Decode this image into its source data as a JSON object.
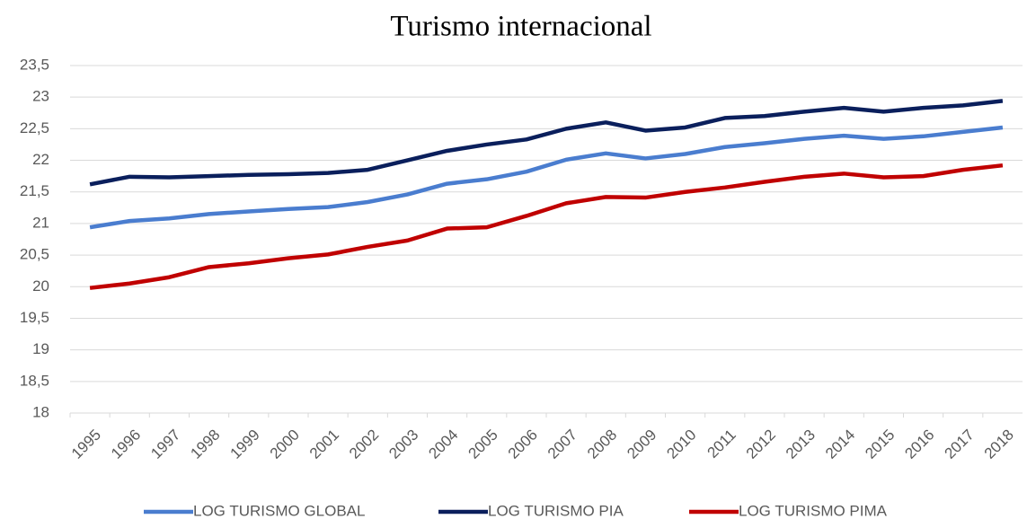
{
  "chart_data": {
    "type": "line",
    "title": "Turismo internacional",
    "categories": [
      "1995",
      "1996",
      "1997",
      "1998",
      "1999",
      "2000",
      "2001",
      "2002",
      "2003",
      "2004",
      "2005",
      "2006",
      "2007",
      "2008",
      "2009",
      "2010",
      "2011",
      "2012",
      "2013",
      "2014",
      "2015",
      "2016",
      "2017",
      "2018"
    ],
    "series": [
      {
        "name": "LOG TURISMO GLOBAL",
        "color": "#4a7dcf",
        "values": [
          20.94,
          21.04,
          21.08,
          21.15,
          21.19,
          21.23,
          21.26,
          21.34,
          21.46,
          21.63,
          21.7,
          21.82,
          22.01,
          22.11,
          22.03,
          22.1,
          22.21,
          22.27,
          22.34,
          22.39,
          22.34,
          22.38,
          22.45,
          22.52
        ]
      },
      {
        "name": "LOG TURISMO PIA",
        "color": "#0a1f5c",
        "values": [
          21.62,
          21.74,
          21.73,
          21.75,
          21.77,
          21.78,
          21.8,
          21.85,
          22.0,
          22.15,
          22.25,
          22.33,
          22.5,
          22.6,
          22.47,
          22.52,
          22.67,
          22.7,
          22.77,
          22.83,
          22.77,
          22.83,
          22.87,
          22.94
        ]
      },
      {
        "name": "LOG TURISMO PIMA",
        "color": "#c00000",
        "values": [
          19.98,
          20.05,
          20.15,
          20.31,
          20.37,
          20.45,
          20.51,
          20.63,
          20.73,
          20.92,
          20.94,
          21.12,
          21.32,
          21.42,
          21.41,
          21.5,
          21.57,
          21.66,
          21.74,
          21.79,
          21.73,
          21.75,
          21.85,
          21.92
        ]
      }
    ],
    "ylim": [
      18,
      23.5
    ],
    "yticks": [
      18,
      {
        "value": 18.5,
        "label": "18,5"
      },
      19,
      {
        "value": 19.5,
        "label": "19,5"
      },
      20,
      {
        "value": 20.5,
        "label": "20,5"
      },
      21,
      {
        "value": 21.5,
        "label": "21,5"
      },
      22,
      {
        "value": 22.5,
        "label": "22,5"
      },
      23,
      {
        "value": 23.5,
        "label": "23,5"
      }
    ],
    "grid": true,
    "legend": "bottom"
  }
}
